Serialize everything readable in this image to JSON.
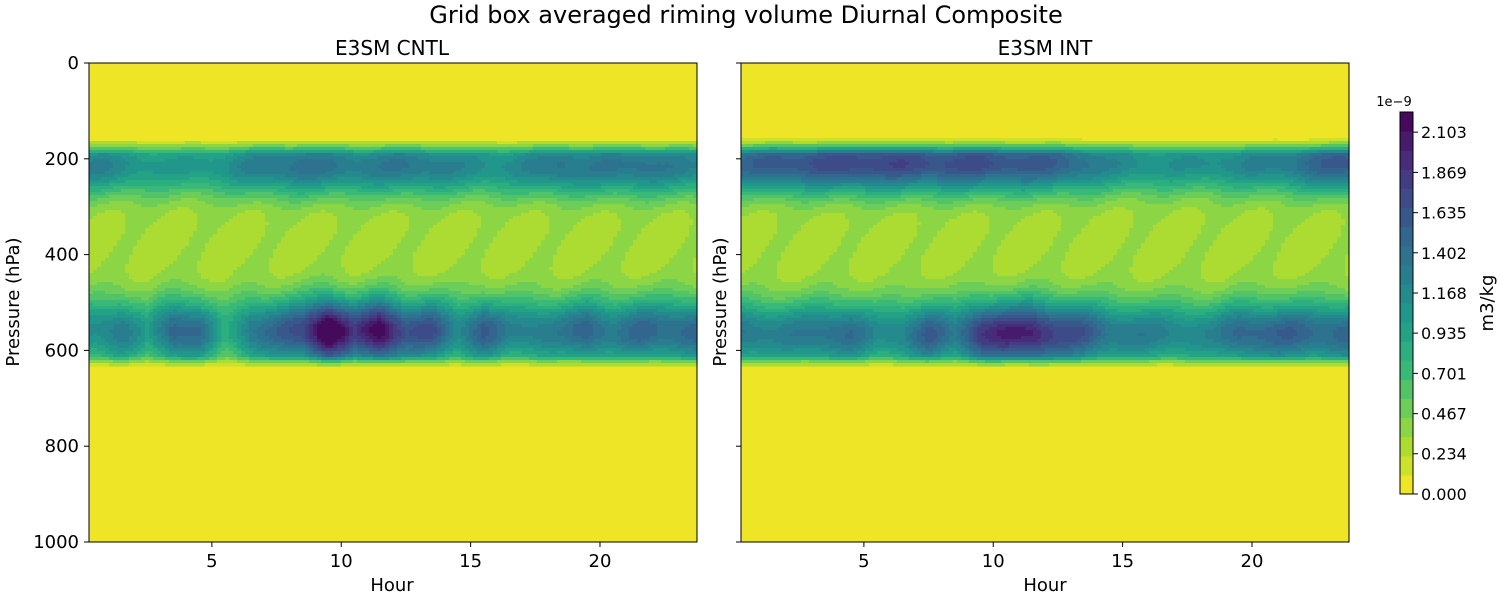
{
  "title": "Grid box averaged riming volume Diurnal Composite",
  "chart_data": [
    {
      "type": "contour",
      "title": "E3SM CNTL",
      "xlabel": "Hour",
      "ylabel": "Pressure (hPa)",
      "xlim": [
        0.25,
        23.75
      ],
      "ylim": [
        1000,
        0
      ],
      "xticks": [
        5,
        10,
        15,
        20
      ],
      "yticks": [
        0,
        200,
        400,
        600,
        800,
        1000
      ],
      "band": {
        "top_edge_hPa": 160,
        "bottom_edge_hPa": 630,
        "upper_peak_hPa": 215,
        "upper_peak_value": 1.05,
        "mid_min_hPa": 360,
        "mid_min_value": 0.3,
        "lower_peak_hPa": 560,
        "max_value": 2.2
      },
      "upper_layer_by_hour": [
        0.95,
        0.85,
        0.75,
        0.7,
        0.75,
        0.8,
        0.95,
        1.05,
        1.1,
        1.05,
        1.0,
        1.0,
        1.05,
        1.0,
        0.9,
        0.85,
        0.85,
        0.95,
        1.1,
        1.0,
        1.05,
        1.1,
        1.0,
        0.95
      ],
      "lower_layer_by_hour": [
        0.85,
        1.05,
        0.65,
        1.25,
        1.15,
        0.5,
        1.05,
        1.2,
        1.45,
        2.2,
        1.5,
        2.0,
        1.35,
        1.4,
        0.9,
        1.3,
        0.95,
        1.0,
        1.0,
        1.25,
        1.0,
        1.2,
        1.15,
        1.2
      ]
    },
    {
      "type": "contour",
      "title": "E3SM INT",
      "xlabel": "Hour",
      "ylabel": "Pressure (hPa)",
      "xlim": [
        0.25,
        23.75
      ],
      "ylim": [
        1000,
        0
      ],
      "xticks": [
        5,
        10,
        15,
        20
      ],
      "yticks": [
        0,
        200,
        400,
        600,
        800,
        1000
      ],
      "band": {
        "top_edge_hPa": 160,
        "bottom_edge_hPa": 630,
        "upper_peak_hPa": 210,
        "upper_peak_value": 1.3,
        "mid_min_hPa": 360,
        "mid_min_value": 0.3,
        "lower_peak_hPa": 565,
        "max_value": 2.2
      },
      "upper_layer_by_hour": [
        1.2,
        1.3,
        1.35,
        1.4,
        1.45,
        1.45,
        1.45,
        1.4,
        1.4,
        1.4,
        1.35,
        1.3,
        1.25,
        1.1,
        0.9,
        0.85,
        0.8,
        0.8,
        0.85,
        0.9,
        0.95,
        1.05,
        1.2,
        1.3
      ],
      "lower_layer_by_hour": [
        1.05,
        0.95,
        1.0,
        1.1,
        1.15,
        0.85,
        0.95,
        1.3,
        1.0,
        1.6,
        1.7,
        1.75,
        1.45,
        1.35,
        1.05,
        1.0,
        0.95,
        0.9,
        0.9,
        1.2,
        1.2,
        1.25,
        1.15,
        1.2
      ]
    }
  ],
  "colorbar": {
    "label": "m3/kg",
    "multiplier": "1e−9",
    "vmin": 0.0,
    "vmax": 2.22,
    "levels": 20,
    "tick_values": [
      0.0,
      0.234,
      0.467,
      0.701,
      0.935,
      1.168,
      1.402,
      1.635,
      1.869,
      2.103
    ],
    "tick_labels": [
      "0.000",
      "0.234",
      "0.467",
      "0.701",
      "0.935",
      "1.168",
      "1.402",
      "1.635",
      "1.869",
      "2.103"
    ],
    "colormap": "viridis_r"
  }
}
